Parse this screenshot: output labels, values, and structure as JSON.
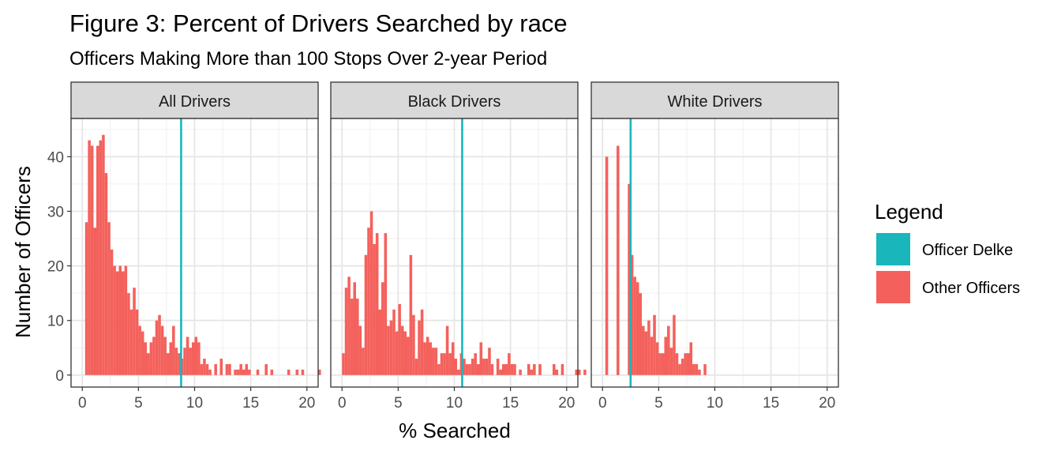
{
  "chart_data": {
    "type": "bar",
    "title": "Figure 3: Percent of Drivers Searched by race",
    "subtitle": "Officers Making More than 100 Stops Over 2-year Period",
    "xlabel": "% Searched",
    "ylabel": "Number of Officers",
    "xlim": [
      -1,
      21
    ],
    "ylim": [
      -2.2,
      47
    ],
    "x_ticks": [
      "0",
      "5",
      "10",
      "15",
      "20"
    ],
    "y_ticks": [
      "0",
      "10",
      "20",
      "30",
      "40"
    ],
    "grid": true,
    "legend_position": "right",
    "legend": {
      "title": "Legend",
      "items": [
        {
          "label": "Officer Delke",
          "color": "#19B6BB"
        },
        {
          "label": "Other Officers",
          "color": "#F4615C"
        }
      ]
    },
    "bin_width": 0.25,
    "panels": [
      {
        "label": "All Drivers",
        "delke_value": 8.8,
        "bin_start": 0.25,
        "counts": [
          28,
          43,
          42,
          27,
          42,
          43,
          44,
          37,
          28,
          23,
          20,
          19,
          20,
          19,
          20,
          15,
          12,
          16,
          12,
          9,
          8,
          6,
          4,
          6,
          7,
          10,
          11,
          9,
          7,
          4,
          6,
          9,
          5,
          4,
          3,
          5,
          7,
          5,
          6,
          7,
          6,
          2,
          3,
          2,
          1,
          0,
          2,
          0,
          3,
          0,
          2,
          2,
          0,
          1,
          1,
          2,
          1,
          2,
          1,
          0,
          0,
          1,
          0,
          0,
          2,
          0,
          1,
          0,
          0,
          0,
          0,
          0,
          1,
          0,
          0,
          1,
          0,
          1,
          0,
          0,
          0,
          0,
          0,
          1,
          0,
          0,
          0,
          0,
          0,
          0,
          0,
          1,
          0,
          0,
          0,
          0,
          0,
          0,
          0,
          0,
          0,
          0,
          0,
          0,
          0,
          0,
          0,
          0,
          0,
          0,
          0,
          0,
          0,
          0,
          0,
          0,
          0,
          0,
          0,
          0
        ],
        "counts_note": ""
      },
      {
        "label": "Black Drivers",
        "delke_value": 10.7,
        "bin_start": 0.0,
        "counts": [
          4,
          16,
          18,
          14,
          17,
          14,
          9,
          5,
          22,
          27,
          30,
          24,
          26,
          12,
          17,
          26,
          9,
          10,
          12,
          8,
          13,
          9,
          8,
          7,
          22,
          11,
          3,
          10,
          12,
          6,
          7,
          6,
          5,
          5,
          2,
          4,
          4,
          9,
          4,
          6,
          3,
          1,
          4,
          3,
          2,
          2,
          3,
          4,
          2,
          6,
          3,
          3,
          5,
          2,
          0,
          3,
          1,
          2,
          2,
          4,
          2,
          2,
          0,
          1,
          0,
          0,
          2,
          1,
          2,
          0,
          2,
          0,
          0,
          0,
          0,
          2,
          1,
          0,
          2,
          0,
          0,
          0,
          0,
          1,
          1,
          0,
          1,
          0,
          0,
          0,
          1,
          0,
          0,
          0,
          0,
          0,
          0,
          0,
          0,
          0,
          0,
          0,
          0,
          0,
          0,
          0,
          0,
          0,
          0,
          0,
          0,
          0,
          0,
          0,
          0,
          0,
          0,
          0,
          0,
          0
        ],
        "counts_note": ""
      },
      {
        "label": "White Drivers",
        "delke_value": 2.5,
        "bin_start": 0.25,
        "counts": [
          40,
          0,
          0,
          0,
          42,
          0,
          0,
          0,
          35,
          22,
          18,
          17,
          15,
          9,
          8,
          10,
          7,
          11,
          6,
          4,
          4,
          7,
          9,
          5,
          11,
          4,
          2,
          3,
          4,
          4,
          6,
          2,
          2,
          1,
          0,
          2,
          0,
          0,
          0,
          0,
          0,
          0,
          0,
          0,
          0,
          0,
          0,
          0,
          0,
          0,
          0,
          0,
          0,
          0,
          0,
          0,
          0,
          0,
          0,
          0,
          0,
          0,
          0,
          0,
          0,
          0,
          0,
          0,
          0,
          0,
          0,
          0,
          0,
          0,
          0,
          0,
          0,
          0,
          0,
          0
        ],
        "counts_note": ""
      }
    ]
  }
}
